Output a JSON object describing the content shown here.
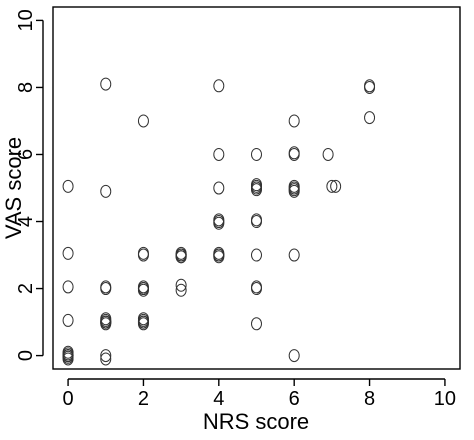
{
  "chart_data": {
    "type": "scatter",
    "xlabel": "NRS score",
    "ylabel": "VAS score",
    "xlim": [
      -0.4,
      10.4
    ],
    "ylim": [
      -0.4,
      10.4
    ],
    "x_ticks": [
      0,
      2,
      4,
      6,
      8,
      10
    ],
    "y_ticks": [
      0,
      2,
      4,
      6,
      8,
      10
    ],
    "x_tick_labels": [
      "0",
      "2",
      "4",
      "6",
      "8",
      "10"
    ],
    "y_tick_labels": [
      "0",
      "2",
      "4",
      "6",
      "8",
      "10"
    ],
    "grid": false,
    "legend": "none",
    "series": [
      {
        "x": [
          0,
          0,
          0,
          0,
          0,
          0,
          0,
          0,
          0,
          0,
          0,
          1,
          1,
          1,
          1,
          1,
          1,
          1,
          1,
          1,
          1,
          1,
          1,
          2,
          2,
          2,
          2,
          2,
          2,
          2,
          2,
          2,
          2,
          2,
          2,
          3,
          3,
          3,
          3,
          3,
          3,
          3,
          3,
          4,
          4,
          4,
          4,
          4,
          4,
          4,
          4,
          4,
          4,
          5,
          5,
          5,
          5,
          5,
          5,
          5,
          5,
          5,
          5,
          5,
          6,
          6,
          6,
          6,
          6,
          6,
          6,
          6,
          6,
          6.9,
          7,
          7.1,
          8,
          8,
          8
        ],
        "y": [
          0,
          0.05,
          -0.05,
          0.1,
          0,
          1.05,
          2.05,
          3.05,
          5.05,
          0,
          -0.1,
          0,
          -0.1,
          1.0,
          1.05,
          0.95,
          1.1,
          1.0,
          2.05,
          2.0,
          4.9,
          8.1,
          1.0,
          1.0,
          1.05,
          0.95,
          1.1,
          2.0,
          2.05,
          1.95,
          2.0,
          3.0,
          3.05,
          7.0,
          1.0,
          1.95,
          2.1,
          3.0,
          2.95,
          3.05,
          3.0,
          2.95,
          3.0,
          2.95,
          3.0,
          3.05,
          3.95,
          4.05,
          4.0,
          5.0,
          6.0,
          8.05,
          3.0,
          0.95,
          2.0,
          2.05,
          3.0,
          4.0,
          4.05,
          4.95,
          5.0,
          5.05,
          5.1,
          6.0,
          0,
          3.0,
          4.9,
          5.0,
          5.05,
          6.0,
          6.05,
          7.0,
          4.95,
          6.0,
          5.05,
          5.05,
          7.1,
          8.0,
          8.05
        ]
      }
    ]
  }
}
